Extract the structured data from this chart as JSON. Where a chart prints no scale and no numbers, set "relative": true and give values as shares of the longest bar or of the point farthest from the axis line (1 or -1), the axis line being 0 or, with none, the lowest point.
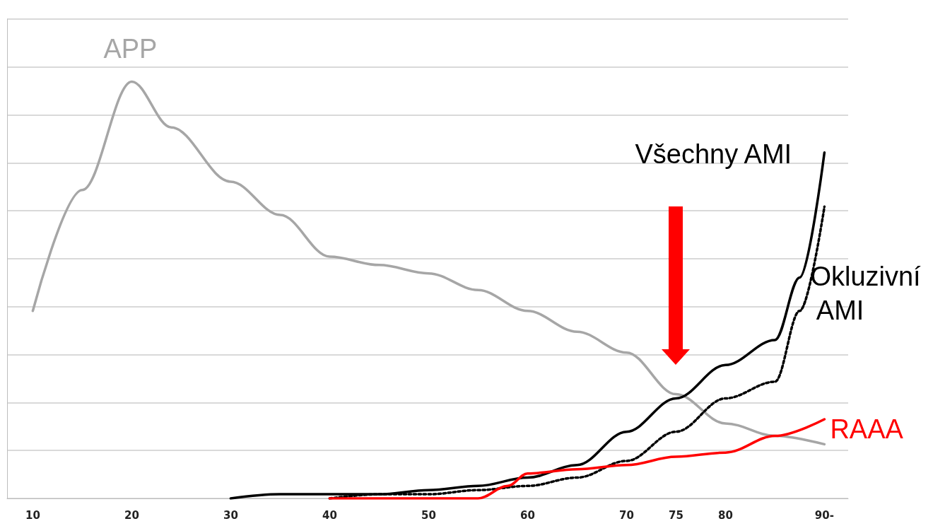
{
  "chart_data": {
    "type": "line",
    "relative": true,
    "grid": "y",
    "legend": false,
    "marker": "none",
    "xlim": [
      7.4,
      92.4
    ],
    "xticks": [
      10,
      20,
      30,
      40,
      50,
      60,
      70,
      75,
      80,
      {
        "value": 90,
        "label": "90-"
      }
    ],
    "series": [
      {
        "name": "APP",
        "color": "#a6a6a6",
        "line_style": "solid",
        "x": [
          10,
          15,
          20,
          24,
          30,
          35,
          40,
          45,
          50,
          55,
          60,
          65,
          70,
          75,
          80,
          85,
          90
        ],
        "values": [
          0.45,
          0.74,
          1.0,
          0.89,
          0.76,
          0.68,
          0.58,
          0.56,
          0.54,
          0.5,
          0.45,
          0.4,
          0.35,
          0.25,
          0.18,
          0.15,
          0.13
        ]
      },
      {
        "name": "Všechny AMI",
        "color": "#000000",
        "line_style": "solid",
        "x": [
          30,
          35,
          40,
          45,
          50,
          55,
          60,
          65,
          70,
          75,
          80,
          85,
          87.5,
          90
        ],
        "values": [
          0,
          0.01,
          0.01,
          0.01,
          0.02,
          0.03,
          0.05,
          0.08,
          0.16,
          0.24,
          0.32,
          0.38,
          0.53,
          0.83
        ]
      },
      {
        "name": "Okluzivní AMI",
        "color": "#000000",
        "line_style": "dotted",
        "x": [
          40,
          45,
          50,
          55,
          60,
          65,
          70,
          75,
          80,
          85,
          87.5,
          90
        ],
        "values": [
          0,
          0.01,
          0.01,
          0.02,
          0.03,
          0.05,
          0.09,
          0.16,
          0.24,
          0.28,
          0.45,
          0.7
        ]
      },
      {
        "name": "RAAA",
        "color": "#ff0000",
        "line_style": "solid",
        "x": [
          40,
          45,
          50,
          55,
          58,
          60,
          65,
          70,
          75,
          80,
          85,
          90
        ],
        "values": [
          0,
          0,
          0,
          0,
          0.03,
          0.06,
          0.07,
          0.08,
          0.1,
          0.11,
          0.15,
          0.19
        ]
      }
    ]
  }
}
